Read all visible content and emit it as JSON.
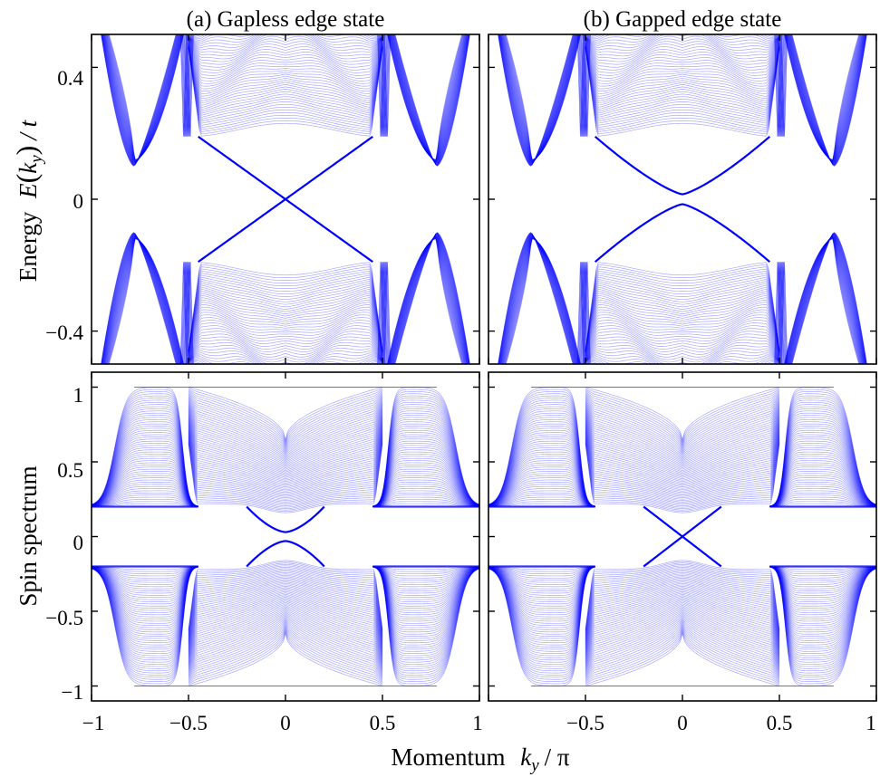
{
  "figure": {
    "xlabel_main": "Momentum",
    "xlabel_var": "k",
    "xlabel_sub": "y",
    "xlabel_tail": "/ π",
    "ylabel_top_word": "Energy",
    "ylabel_top_E": "E",
    "ylabel_top_open": "(",
    "ylabel_top_k": "k",
    "ylabel_top_sub": "y",
    "ylabel_top_close": ")",
    "ylabel_top_tail": "/ t",
    "ylabel_bottom": "Spin spectrum",
    "colors": {
      "line": "#0000ff",
      "band_opacity": 0.35,
      "edge_opacity": 1.0
    }
  },
  "chart_data": [
    {
      "type": "line",
      "panel": "top-left",
      "title": "(a) Gapless edge state",
      "xlim": [
        -1,
        1
      ],
      "ylim": [
        -0.5,
        0.5
      ],
      "yticks": [
        -0.4,
        0,
        0.4
      ],
      "ytick_labels": [
        "−0.4",
        "0",
        "0.4"
      ],
      "band_edge_min": 0.1,
      "edge_states": {
        "k_range": [
          -0.45,
          0.45
        ],
        "E_at_edges": 0.19,
        "gap_at_k0": 0.0
      },
      "bulk_features_k": [
        -0.78,
        -0.5,
        0.5,
        0.78
      ]
    },
    {
      "type": "line",
      "panel": "top-right",
      "title": "(b) Gapped edge state",
      "xlim": [
        -1,
        1
      ],
      "ylim": [
        -0.5,
        0.5
      ],
      "yticks": [
        -0.4,
        0,
        0.4
      ],
      "edge_states": {
        "k_range": [
          -0.45,
          0.45
        ],
        "E_at_edges": 0.19,
        "gap_at_k0": 0.015
      },
      "bulk_features_k": [
        -0.78,
        -0.5,
        0.5,
        0.78
      ]
    },
    {
      "type": "line",
      "panel": "bottom-left",
      "xlim": [
        -1,
        1
      ],
      "ylim": [
        -1.1,
        1.1
      ],
      "yticks": [
        -1,
        -0.5,
        0,
        0.5,
        1
      ],
      "ytick_labels": [
        "−1",
        "−0.5",
        "0",
        "0.5",
        "1"
      ],
      "xticks": [
        -1,
        -0.5,
        0,
        0.5,
        1
      ],
      "xtick_labels": [
        "−1",
        "−0.5",
        "0",
        "0.5",
        "1"
      ],
      "band_edge_min": 0.2,
      "edge_states": {
        "k_range": [
          -0.2,
          0.2
        ],
        "S_at_edges": 0.2,
        "gap_at_k0": 0.03
      }
    },
    {
      "type": "line",
      "panel": "bottom-right",
      "xlim": [
        -1,
        1
      ],
      "ylim": [
        -1.1,
        1.1
      ],
      "yticks": [
        -1,
        -0.5,
        0,
        0.5,
        1
      ],
      "xticks": [
        -1,
        -0.5,
        0,
        0.5,
        1
      ],
      "xtick_labels": [
        "",
        "−0.5",
        "0",
        "0.5",
        "1"
      ],
      "band_edge_min": 0.2,
      "edge_states": {
        "k_range": [
          -0.2,
          0.2
        ],
        "S_at_edges": 0.2,
        "gap_at_k0": 0.0
      }
    }
  ]
}
